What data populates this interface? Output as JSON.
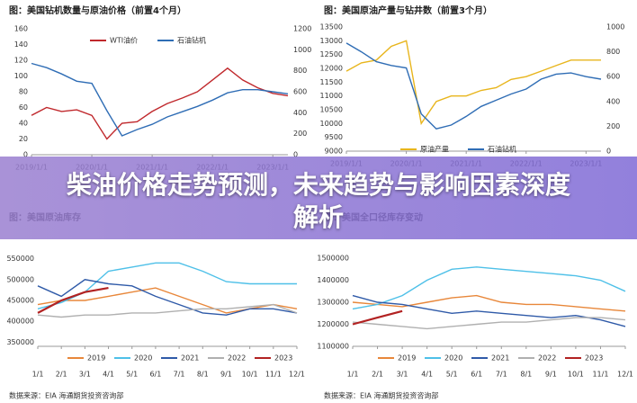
{
  "banner": {
    "title": "柴油价格走势预测，未来趋势与影响因素深度解析"
  },
  "chart_data": [
    {
      "type": "line",
      "title": "图：美国钻机数量与原油价格（前置4个月）",
      "categories": [
        "2019/1/1",
        null,
        null,
        null,
        "2020/1/1",
        null,
        null,
        null,
        "2021/1/1",
        null,
        null,
        null,
        "2022/1/1",
        null,
        null,
        null,
        "2023/1/1",
        null
      ],
      "ylim": [
        0,
        160
      ],
      "yticks": [
        0,
        20,
        40,
        60,
        80,
        100,
        120,
        140,
        160
      ],
      "y2lim": [
        0,
        1200
      ],
      "y2ticks": [
        0,
        200,
        400,
        600,
        800,
        1000,
        1200
      ],
      "grid": false,
      "series": [
        {
          "name": "WTI油价",
          "color": "#c0282c",
          "values": [
            50,
            60,
            55,
            57,
            50,
            20,
            40,
            42,
            55,
            65,
            72,
            80,
            95,
            110,
            95,
            85,
            78,
            75
          ]
        },
        {
          "name": "石油钻机",
          "color": "#2f6db5",
          "axis": "y2",
          "values": [
            870,
            830,
            770,
            700,
            680,
            420,
            180,
            240,
            290,
            360,
            410,
            460,
            520,
            590,
            620,
            620,
            600,
            580
          ]
        }
      ]
    },
    {
      "type": "line",
      "title": "图：美国原油产量与钻井数（前置3个月）",
      "categories": [
        "2019/1/1",
        null,
        null,
        null,
        "2020/1/1",
        null,
        null,
        null,
        "2021/1/1",
        null,
        null,
        null,
        "2022/1/1",
        null,
        null,
        null,
        "2023/1/1",
        null
      ],
      "ylim": [
        9000,
        13500
      ],
      "yticks": [
        9000,
        9500,
        10000,
        10500,
        11000,
        11500,
        12000,
        12500,
        13000,
        13500
      ],
      "y2lim": [
        0,
        1000
      ],
      "y2ticks": [
        0,
        200,
        400,
        600,
        800,
        1000
      ],
      "grid": false,
      "series": [
        {
          "name": "原油产量",
          "color": "#e8b51c",
          "values": [
            11900,
            12200,
            12300,
            12800,
            13000,
            10000,
            10800,
            11000,
            11000,
            11200,
            11300,
            11600,
            11700,
            11900,
            12100,
            12300,
            12300,
            12300
          ]
        },
        {
          "name": "石油钻机",
          "color": "#2f6db5",
          "axis": "y2",
          "values": [
            870,
            800,
            720,
            690,
            670,
            300,
            180,
            210,
            280,
            360,
            410,
            460,
            500,
            580,
            620,
            630,
            600,
            580
          ]
        }
      ]
    },
    {
      "type": "line",
      "title": "图：美国原油库存",
      "categories": [
        "1/1",
        "2/1",
        "3/1",
        "4/1",
        "5/1",
        "6/1",
        "7/1",
        "8/1",
        "9/1",
        "10/1",
        "11/1",
        "12/1"
      ],
      "ylim": [
        340000,
        560000
      ],
      "yticks": [
        350000,
        400000,
        450000,
        500000,
        550000
      ],
      "grid": false,
      "source": "数据来源：EIA   海通期货投资咨询部",
      "series": [
        {
          "name": "2019",
          "color": "#e8873a",
          "values": [
            440000,
            450000,
            450000,
            460000,
            470000,
            480000,
            460000,
            440000,
            420000,
            430000,
            440000,
            430000
          ]
        },
        {
          "name": "2020",
          "color": "#4ec0e8",
          "values": [
            430000,
            445000,
            470000,
            520000,
            530000,
            540000,
            540000,
            520000,
            495000,
            490000,
            490000,
            490000
          ]
        },
        {
          "name": "2021",
          "color": "#2f5aa8",
          "values": [
            485000,
            460000,
            500000,
            490000,
            485000,
            460000,
            440000,
            420000,
            415000,
            430000,
            430000,
            420000
          ]
        },
        {
          "name": "2022",
          "color": "#b0b0b0",
          "values": [
            415000,
            410000,
            415000,
            415000,
            420000,
            420000,
            425000,
            430000,
            430000,
            435000,
            440000,
            420000
          ]
        },
        {
          "name": "2023",
          "color": "#b22222",
          "values": [
            420000,
            450000,
            470000,
            480000,
            null,
            null,
            null,
            null,
            null,
            null,
            null,
            null
          ]
        }
      ]
    },
    {
      "type": "line",
      "title": "图：美国全口径库存变动",
      "categories": [
        "1/1",
        "2/1",
        "3/1",
        "4/1",
        "5/1",
        "6/1",
        "7/1",
        "8/1",
        "9/1",
        "10/1",
        "11/1",
        "12/1"
      ],
      "ylim": [
        1100000,
        1500000
      ],
      "yticks": [
        1100000,
        1200000,
        1300000,
        1400000,
        1500000
      ],
      "grid": false,
      "source": "数据来源：EIA   海通期货投资咨询部",
      "series": [
        {
          "name": "2019",
          "color": "#e8873a",
          "values": [
            1300000,
            1290000,
            1280000,
            1300000,
            1320000,
            1330000,
            1300000,
            1290000,
            1290000,
            1280000,
            1270000,
            1260000
          ]
        },
        {
          "name": "2020",
          "color": "#4ec0e8",
          "values": [
            1270000,
            1290000,
            1330000,
            1400000,
            1450000,
            1460000,
            1450000,
            1440000,
            1430000,
            1420000,
            1400000,
            1350000
          ]
        },
        {
          "name": "2021",
          "color": "#2f5aa8",
          "values": [
            1330000,
            1300000,
            1290000,
            1270000,
            1250000,
            1260000,
            1250000,
            1240000,
            1230000,
            1240000,
            1220000,
            1190000
          ]
        },
        {
          "name": "2022",
          "color": "#b0b0b0",
          "values": [
            1210000,
            1200000,
            1190000,
            1180000,
            1190000,
            1200000,
            1210000,
            1210000,
            1220000,
            1230000,
            1230000,
            1220000
          ]
        },
        {
          "name": "2023",
          "color": "#b22222",
          "values": [
            1200000,
            1230000,
            1260000,
            null,
            null,
            null,
            null,
            null,
            null,
            null,
            null,
            null
          ]
        }
      ]
    }
  ]
}
